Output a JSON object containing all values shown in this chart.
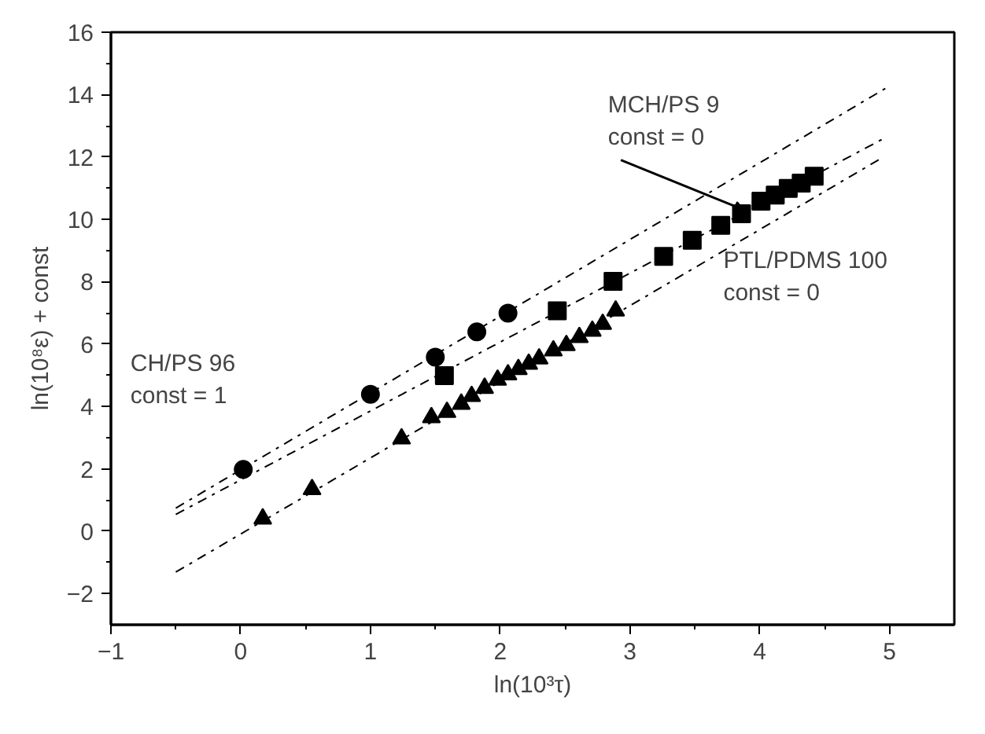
{
  "chart_data": {
    "type": "scatter",
    "xlabel": "ln(10³τ)",
    "ylabel": "ln(10⁸ε) + const",
    "xlim": [
      -1,
      5.5
    ],
    "ylim": [
      -3,
      16
    ],
    "xticks": [
      -1,
      0,
      1,
      2,
      3,
      4,
      5
    ],
    "yticks": [
      -2,
      0,
      2,
      4,
      6,
      8,
      10,
      12,
      14,
      16
    ],
    "grid": false,
    "series": [
      {
        "marker": "circle",
        "color": "#000000",
        "x": [
          0.02,
          1.0,
          1.5,
          1.82,
          2.06
        ],
        "values": [
          1.98,
          4.39,
          5.58,
          6.39,
          6.99
        ]
      },
      {
        "marker": "square",
        "color": "#000000",
        "x": [
          1.57,
          2.44,
          2.87,
          3.26,
          3.48,
          3.7,
          3.86,
          4.01,
          4.12,
          4.22,
          4.32,
          4.42
        ],
        "values": [
          4.99,
          7.07,
          8.01,
          8.81,
          9.33,
          9.81,
          10.18,
          10.58,
          10.78,
          10.99,
          11.16,
          11.38
        ]
      },
      {
        "marker": "triangle",
        "color": "#000000",
        "x": [
          0.17,
          0.55,
          1.24,
          1.47,
          1.59,
          1.7,
          1.78,
          1.88,
          1.98,
          2.06,
          2.14,
          2.22,
          2.3,
          2.41,
          2.51,
          2.61,
          2.71,
          2.79,
          2.89
        ],
        "values": [
          0.4,
          1.34,
          2.97,
          3.65,
          3.82,
          4.08,
          4.33,
          4.59,
          4.85,
          5.02,
          5.19,
          5.36,
          5.53,
          5.79,
          5.96,
          6.22,
          6.42,
          6.64,
          7.07
        ]
      },
      {
        "type": "line",
        "line_style": "dashed",
        "color": "#000000",
        "x": [
          -0.5,
          4.97
        ],
        "values": [
          0.74,
          14.2
        ]
      },
      {
        "type": "line",
        "line_style": "dashed",
        "color": "#000000",
        "x": [
          -0.5,
          4.95
        ],
        "values": [
          0.54,
          12.58
        ]
      },
      {
        "type": "line",
        "line_style": "dashed",
        "color": "#000000",
        "x": [
          -0.5,
          4.93
        ],
        "values": [
          -1.31,
          11.94
        ]
      }
    ],
    "annotations": [
      "CH/PS 96\nconst = 1",
      {
        "text": "MCH/PS 9\nconst = 0",
        "x": 3.88,
        "y": 10.3
      },
      "PTL/PDMS 100\nconst = 0"
    ]
  }
}
